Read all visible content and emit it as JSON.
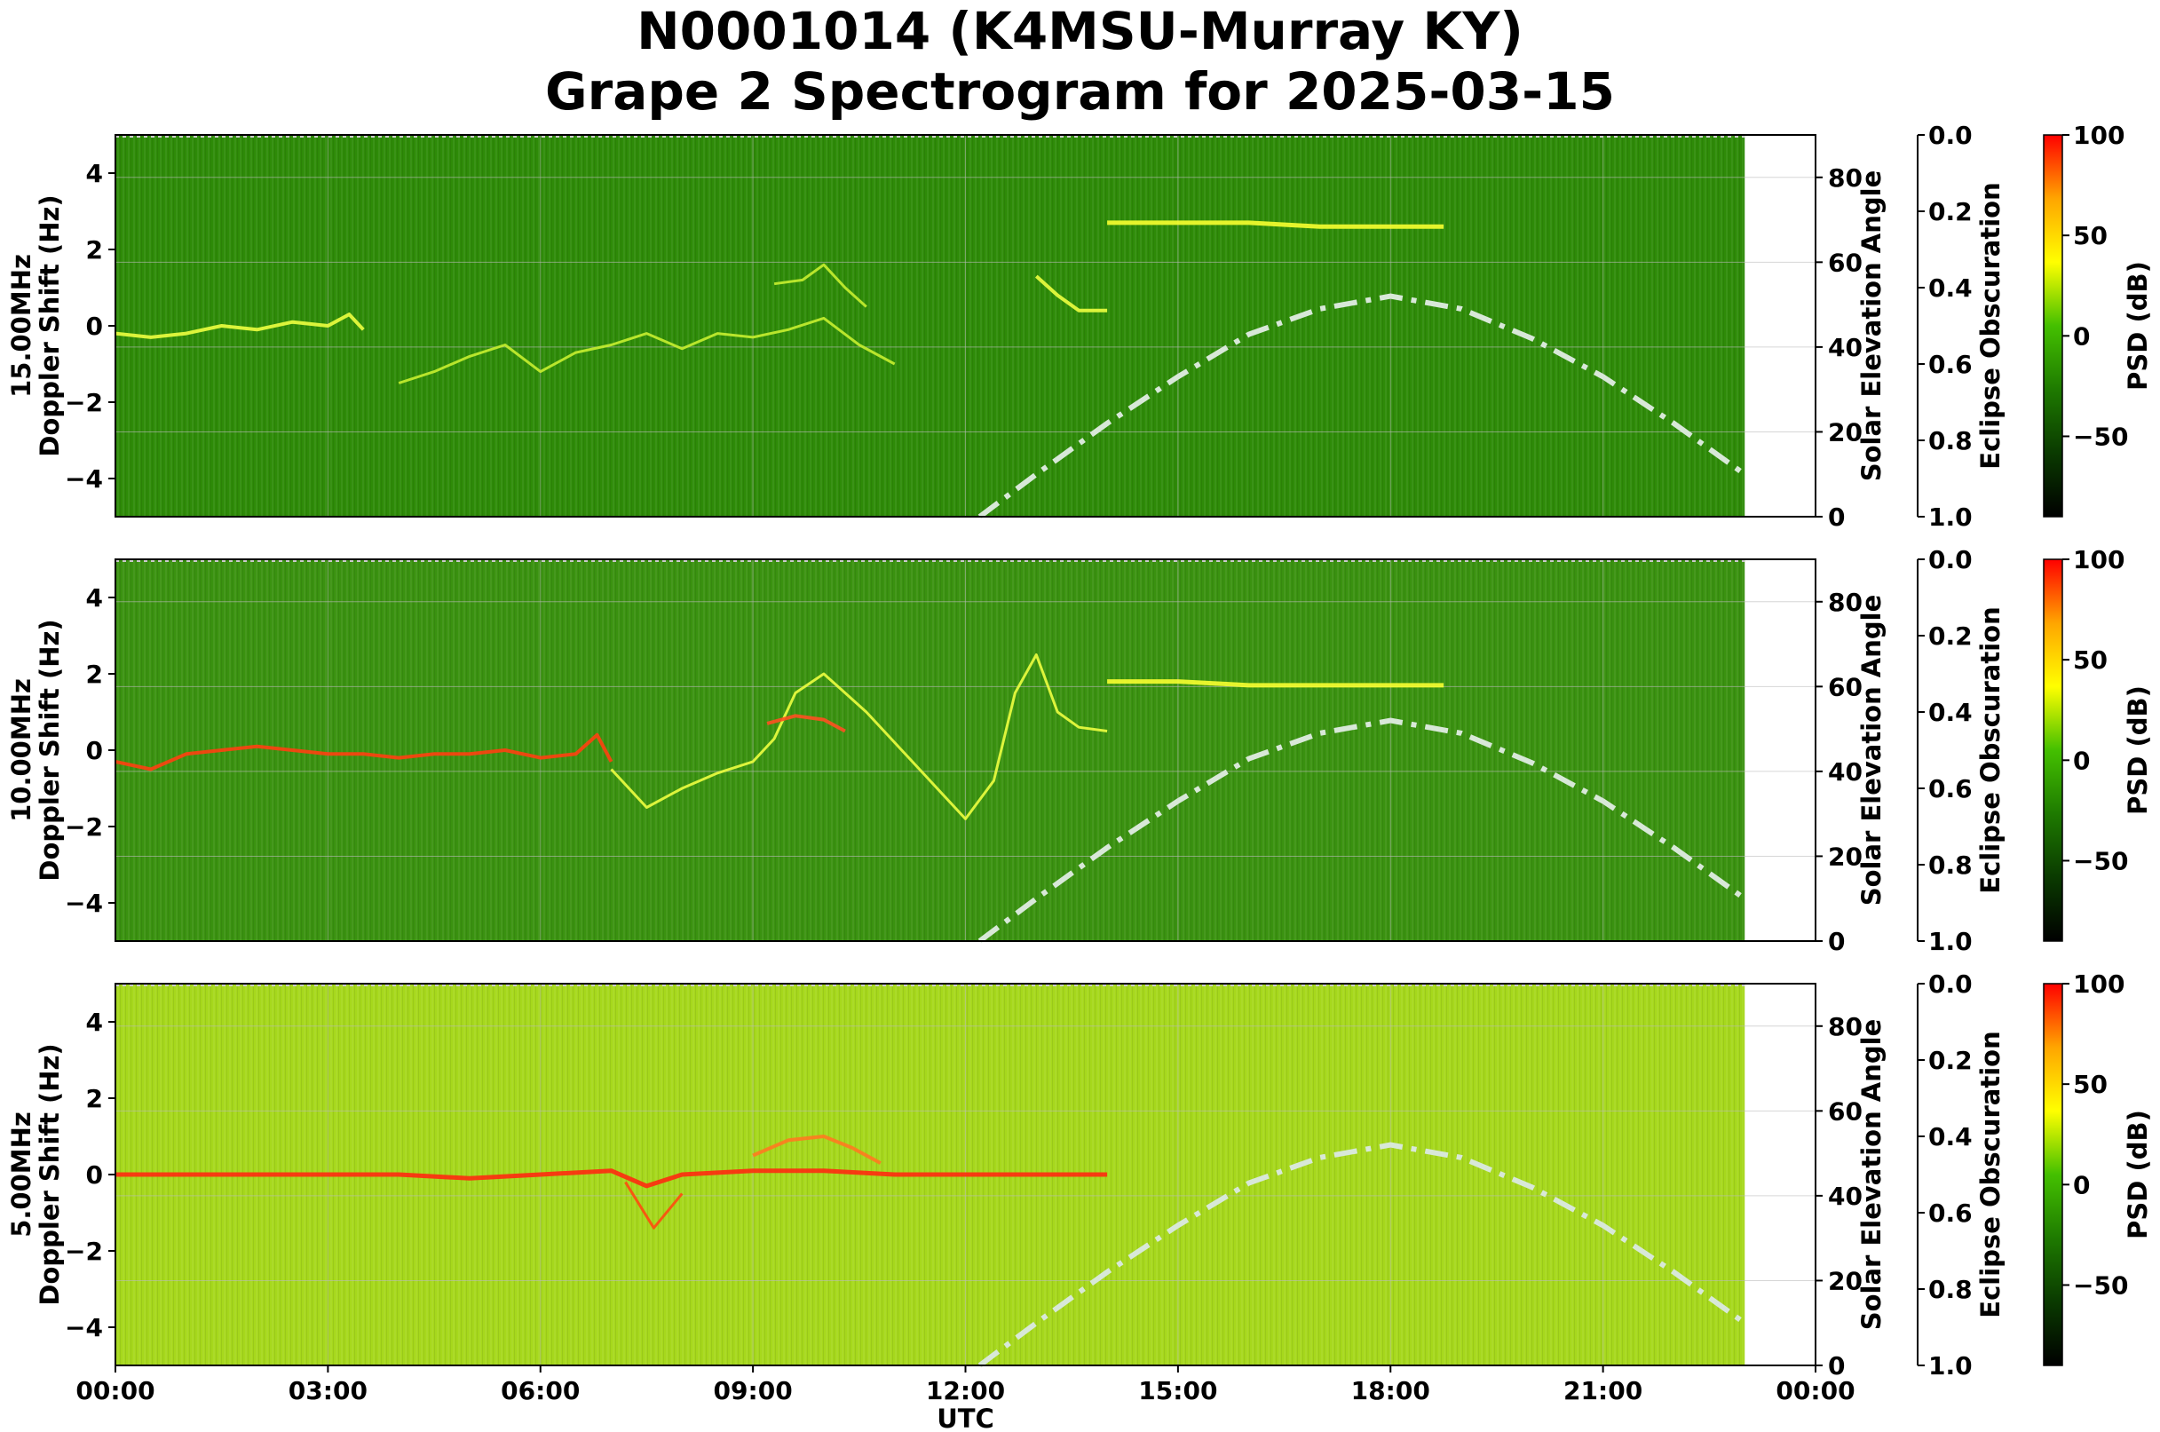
{
  "title_line1": "N0001014 (K4MSU-Murray KY)",
  "title_line2": "Grape 2 Spectrogram for 2025-03-15",
  "chart_data": {
    "type": "heatmap",
    "xlabel": "UTC",
    "x_ticks": [
      "00:00",
      "03:00",
      "06:00",
      "09:00",
      "12:00",
      "15:00",
      "18:00",
      "21:00",
      "00:00"
    ],
    "x_range_hours": [
      0,
      24
    ],
    "data_end_hour": 23.0,
    "ylim": [
      -5,
      5
    ],
    "y_ticks": [
      -4,
      -2,
      0,
      2,
      4
    ],
    "y_tick_labels": [
      "−4",
      "−2",
      "0",
      "2",
      "4"
    ],
    "right_axis_label": "Solar Elevation Angle",
    "right_axis_range": [
      0,
      90
    ],
    "right_axis_ticks": [
      0,
      20,
      40,
      60,
      80
    ],
    "eclipse_axis_label": "Eclipse Obscuration",
    "eclipse_axis_ticks": [
      "0.0",
      "0.2",
      "0.4",
      "0.6",
      "0.8",
      "1.0"
    ],
    "colorbar_label": "PSD (dB)",
    "colorbar_range": [
      -90,
      100
    ],
    "colorbar_ticks": [
      100,
      50,
      0,
      -50
    ],
    "colorbar_tick_labels": [
      "100",
      "50",
      "0",
      "−50"
    ],
    "colorbar_colors": [
      "#ff0000",
      "#ffa500",
      "#ffff00",
      "#44c000",
      "#1e7a00",
      "#0a3a00",
      "#000000"
    ],
    "solar_elevation_curve": {
      "style": "dash-dot",
      "color": "#d8e8d8",
      "points": [
        [
          12.2,
          0
        ],
        [
          13.0,
          10
        ],
        [
          14.0,
          22
        ],
        [
          15.0,
          33
        ],
        [
          16.0,
          43
        ],
        [
          17.0,
          49
        ],
        [
          18.0,
          52
        ],
        [
          19.0,
          49
        ],
        [
          20.0,
          42
        ],
        [
          21.0,
          33
        ],
        [
          22.0,
          22
        ],
        [
          23.0,
          10
        ]
      ]
    },
    "panels": [
      {
        "ylabel_line1": "15.00MHz",
        "ylabel_line2": "Doppler Shift (Hz)",
        "background_color": "#2e8b08",
        "traces": [
          {
            "name": "",
            "color": "#eeff40",
            "width": 4,
            "points": [
              [
                0.0,
                -0.2
              ],
              [
                0.5,
                -0.3
              ],
              [
                1.0,
                -0.2
              ],
              [
                1.5,
                0.0
              ],
              [
                2.0,
                -0.1
              ],
              [
                2.5,
                0.1
              ],
              [
                3.0,
                0.0
              ],
              [
                3.3,
                0.3
              ],
              [
                3.5,
                -0.1
              ]
            ]
          },
          {
            "name": "",
            "color": "#c8f030",
            "width": 3,
            "points": [
              [
                4.0,
                -1.5
              ],
              [
                4.5,
                -1.2
              ],
              [
                5.0,
                -0.8
              ],
              [
                5.5,
                -0.5
              ],
              [
                6.0,
                -1.2
              ],
              [
                6.5,
                -0.7
              ],
              [
                7.0,
                -0.5
              ],
              [
                7.5,
                -0.2
              ],
              [
                8.0,
                -0.6
              ],
              [
                8.5,
                -0.2
              ],
              [
                9.0,
                -0.3
              ],
              [
                9.5,
                -0.1
              ],
              [
                10.0,
                0.2
              ],
              [
                10.5,
                -0.5
              ],
              [
                11.0,
                -1.0
              ]
            ]
          },
          {
            "name": "",
            "color": "#c8f030",
            "width": 3,
            "points": [
              [
                9.3,
                1.1
              ],
              [
                9.7,
                1.2
              ],
              [
                10.0,
                1.6
              ],
              [
                10.3,
                1.0
              ],
              [
                10.6,
                0.5
              ]
            ]
          },
          {
            "name": "",
            "color": "#eeff40",
            "width": 4,
            "points": [
              [
                13.0,
                1.3
              ],
              [
                13.3,
                0.8
              ],
              [
                13.6,
                0.4
              ],
              [
                14.0,
                0.4
              ]
            ]
          },
          {
            "name": "",
            "color": "#f8ff30",
            "width": 5,
            "points": [
              [
                14.0,
                2.7
              ],
              [
                15.0,
                2.7
              ],
              [
                16.0,
                2.7
              ],
              [
                17.0,
                2.6
              ],
              [
                18.0,
                2.6
              ],
              [
                18.75,
                2.6
              ]
            ]
          }
        ]
      },
      {
        "ylabel_line1": "10.00MHz",
        "ylabel_line2": "Doppler Shift (Hz)",
        "background_color": "#3a9210",
        "traces": [
          {
            "name": "",
            "color": "#ff4010",
            "width": 4,
            "points": [
              [
                0.0,
                -0.3
              ],
              [
                0.5,
                -0.5
              ],
              [
                1.0,
                -0.1
              ],
              [
                1.5,
                0.0
              ],
              [
                2.0,
                0.1
              ],
              [
                2.5,
                0.0
              ],
              [
                3.0,
                -0.1
              ],
              [
                3.5,
                -0.1
              ],
              [
                4.0,
                -0.2
              ],
              [
                4.5,
                -0.1
              ],
              [
                5.0,
                -0.1
              ],
              [
                5.5,
                0.0
              ],
              [
                6.0,
                -0.2
              ],
              [
                6.5,
                -0.1
              ],
              [
                6.8,
                0.4
              ],
              [
                7.0,
                -0.3
              ]
            ]
          },
          {
            "name": "",
            "color": "#eeff40",
            "width": 3,
            "points": [
              [
                7.0,
                -0.5
              ],
              [
                7.5,
                -1.5
              ],
              [
                8.0,
                -1.0
              ],
              [
                8.5,
                -0.6
              ],
              [
                9.0,
                -0.3
              ],
              [
                9.3,
                0.3
              ],
              [
                9.6,
                1.5
              ],
              [
                10.0,
                2.0
              ],
              [
                10.3,
                1.5
              ],
              [
                10.6,
                1.0
              ],
              [
                11.0,
                0.2
              ],
              [
                11.5,
                -0.8
              ],
              [
                12.0,
                -1.8
              ],
              [
                12.4,
                -0.8
              ],
              [
                12.7,
                1.5
              ],
              [
                13.0,
                2.5
              ],
              [
                13.3,
                1.0
              ],
              [
                13.6,
                0.6
              ],
              [
                14.0,
                0.5
              ]
            ]
          },
          {
            "name": "",
            "color": "#ff5020",
            "width": 4,
            "points": [
              [
                9.2,
                0.7
              ],
              [
                9.6,
                0.9
              ],
              [
                10.0,
                0.8
              ],
              [
                10.3,
                0.5
              ]
            ]
          },
          {
            "name": "",
            "color": "#f8ff30",
            "width": 5,
            "points": [
              [
                14.0,
                1.8
              ],
              [
                15.0,
                1.8
              ],
              [
                16.0,
                1.7
              ],
              [
                17.0,
                1.7
              ],
              [
                18.0,
                1.7
              ],
              [
                18.75,
                1.7
              ]
            ]
          }
        ]
      },
      {
        "ylabel_line1": "5.00MHz",
        "ylabel_line2": "Doppler Shift (Hz)",
        "background_color": "#a6d81c",
        "traces": [
          {
            "name": "",
            "color": "#ff2a10",
            "width": 5,
            "points": [
              [
                0.0,
                0.0
              ],
              [
                1.0,
                0.0
              ],
              [
                2.0,
                0.0
              ],
              [
                3.0,
                0.0
              ],
              [
                4.0,
                0.0
              ],
              [
                5.0,
                -0.1
              ],
              [
                6.0,
                0.0
              ],
              [
                7.0,
                0.1
              ],
              [
                7.5,
                -0.3
              ],
              [
                8.0,
                0.0
              ],
              [
                9.0,
                0.1
              ],
              [
                10.0,
                0.1
              ],
              [
                11.0,
                0.0
              ],
              [
                12.0,
                0.0
              ],
              [
                13.0,
                0.0
              ],
              [
                14.0,
                0.0
              ]
            ]
          },
          {
            "name": "",
            "color": "#ff4a10",
            "width": 3,
            "points": [
              [
                7.2,
                -0.2
              ],
              [
                7.6,
                -1.4
              ],
              [
                8.0,
                -0.5
              ]
            ]
          },
          {
            "name": "",
            "color": "#ff7a20",
            "width": 4,
            "points": [
              [
                9.0,
                0.5
              ],
              [
                9.5,
                0.9
              ],
              [
                10.0,
                1.0
              ],
              [
                10.4,
                0.7
              ],
              [
                10.8,
                0.3
              ]
            ]
          }
        ]
      }
    ]
  }
}
